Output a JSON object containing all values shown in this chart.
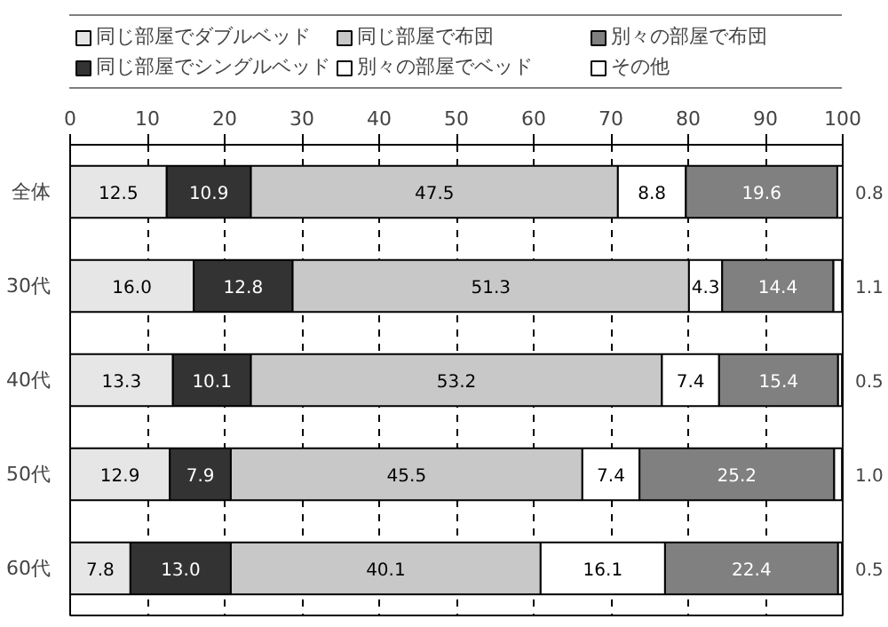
{
  "chart_data": {
    "type": "bar",
    "orientation": "horizontal",
    "stacked": true,
    "categories": [
      "全体",
      "30代",
      "40代",
      "50代",
      "60代"
    ],
    "series": [
      {
        "name": "同じ部屋でダブルベッド",
        "color": "#e6e6e6",
        "values": [
          12.5,
          16.0,
          13.3,
          12.9,
          7.8
        ],
        "value_labels": [
          "12.5",
          "16.0",
          "13.3",
          "12.9",
          "7.8"
        ]
      },
      {
        "name": "同じ部屋でシングルベッド",
        "color": "#333333",
        "values": [
          10.9,
          12.8,
          10.1,
          7.9,
          13.0
        ],
        "value_labels": [
          "10.9",
          "12.8",
          "10.1",
          "7.9",
          "13.0"
        ]
      },
      {
        "name": "同じ部屋で布団",
        "color": "#c8c8c8",
        "values": [
          47.5,
          51.3,
          53.2,
          45.5,
          40.1
        ],
        "value_labels": [
          "47.5",
          "51.3",
          "53.2",
          "45.5",
          "40.1"
        ]
      },
      {
        "name": "別々の部屋でベッド",
        "color": "#ffffff",
        "values": [
          8.8,
          4.3,
          7.4,
          7.4,
          16.1
        ],
        "value_labels": [
          "8.8",
          "4.3",
          "7.4",
          "7.4",
          "16.1"
        ]
      },
      {
        "name": "別々の部屋で布団",
        "color": "#808080",
        "values": [
          19.6,
          14.4,
          15.4,
          25.2,
          22.4
        ],
        "value_labels": [
          "19.6",
          "14.4",
          "15.4",
          "25.2",
          "22.4"
        ]
      },
      {
        "name": "その他",
        "color": "#ffffff",
        "values": [
          0.8,
          1.1,
          0.5,
          1.0,
          0.5
        ],
        "value_labels": [
          "0.8",
          "1.1",
          "0.5",
          "1.0",
          "0.5"
        ]
      }
    ],
    "xlim": [
      0,
      100
    ],
    "xticks": [
      0,
      10,
      20,
      30,
      40,
      50,
      60,
      70,
      80,
      90,
      100
    ],
    "grid": "x",
    "legend": "top"
  }
}
